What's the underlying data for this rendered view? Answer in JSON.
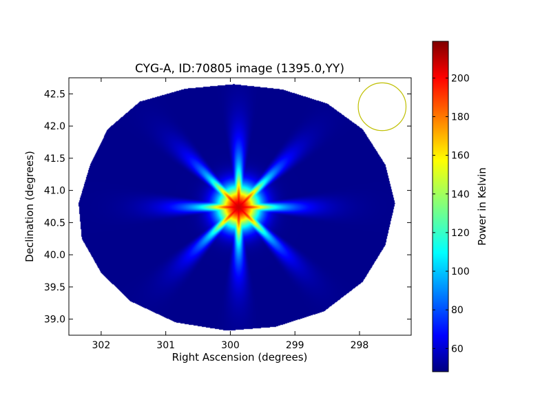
{
  "chart_data": {
    "type": "heatmap",
    "title": "CYG-A, ID:70805 image (1395.0,YY)",
    "xlabel": "Right Ascension (degrees)",
    "ylabel": "Declination (degrees)",
    "xlim": [
      302.5,
      297.2
    ],
    "ylim": [
      38.75,
      42.75
    ],
    "x_ticks": [
      {
        "value": 302,
        "label": "302"
      },
      {
        "value": 301,
        "label": "301"
      },
      {
        "value": 300,
        "label": "300"
      },
      {
        "value": 299,
        "label": "299"
      },
      {
        "value": 298,
        "label": "298"
      }
    ],
    "y_ticks": [
      {
        "value": 39.0,
        "label": "39.0"
      },
      {
        "value": 39.5,
        "label": "39.5"
      },
      {
        "value": 40.0,
        "label": "40.0"
      },
      {
        "value": 40.5,
        "label": "40.5"
      },
      {
        "value": 41.0,
        "label": "41.0"
      },
      {
        "value": 41.5,
        "label": "41.5"
      },
      {
        "value": 42.0,
        "label": "42.0"
      },
      {
        "value": 42.5,
        "label": "42.5"
      }
    ],
    "colorbar": {
      "label": "Power in Kelvin",
      "colormap": "jet",
      "range": [
        48,
        219
      ],
      "ticks": [
        {
          "value": 60,
          "label": "60"
        },
        {
          "value": 80,
          "label": "80"
        },
        {
          "value": 100,
          "label": "100"
        },
        {
          "value": 120,
          "label": "120"
        },
        {
          "value": 140,
          "label": "140"
        },
        {
          "value": 160,
          "label": "160"
        },
        {
          "value": 180,
          "label": "180"
        },
        {
          "value": 200,
          "label": "200"
        }
      ]
    },
    "source": {
      "ra": 299.87,
      "dec": 40.74,
      "peak": 219,
      "background": 50,
      "lobes": 16
    },
    "field_outline": [
      [
        302.35,
        40.8
      ],
      [
        302.17,
        41.4
      ],
      [
        301.9,
        41.95
      ],
      [
        301.4,
        42.38
      ],
      [
        300.7,
        42.58
      ],
      [
        299.95,
        42.65
      ],
      [
        299.2,
        42.57
      ],
      [
        298.5,
        42.35
      ],
      [
        297.95,
        41.95
      ],
      [
        297.6,
        41.4
      ],
      [
        297.45,
        40.8
      ],
      [
        297.6,
        40.15
      ],
      [
        297.95,
        39.58
      ],
      [
        298.55,
        39.12
      ],
      [
        299.3,
        38.88
      ],
      [
        300.05,
        38.82
      ],
      [
        300.85,
        38.95
      ],
      [
        301.55,
        39.28
      ],
      [
        302.0,
        39.72
      ],
      [
        302.3,
        40.25
      ]
    ],
    "beam_marker": {
      "ra": 297.65,
      "dec": 42.3,
      "radius_deg": 0.37,
      "color": "#bfbf00"
    },
    "grid": false
  }
}
